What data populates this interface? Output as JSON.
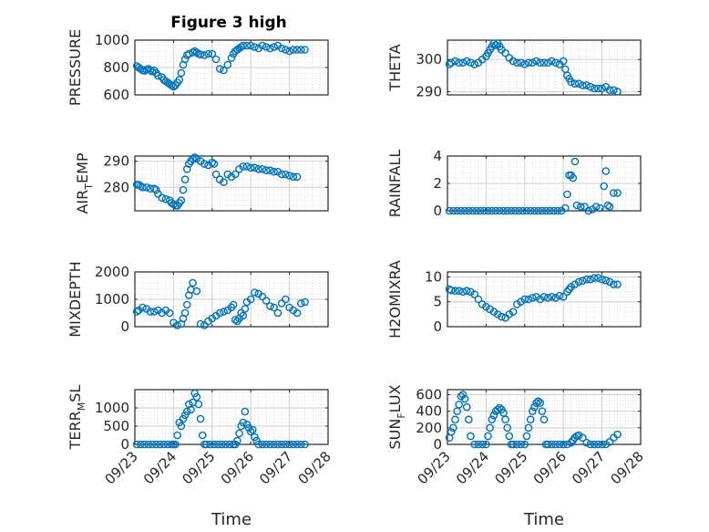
{
  "figure_title": "Figure 3 high",
  "chart_data": [
    {
      "type": "scatter",
      "ylabel_main": "PRESSURE",
      "ylabel_sub": "",
      "ylabel_tail": "",
      "ylim": [
        600,
        1000
      ],
      "yticks": [
        "600",
        "800",
        "1000"
      ],
      "xlim": [
        0,
        5
      ],
      "xticklabels": [
        "09/23",
        "09/24",
        "09/25",
        "09/26",
        "09/27",
        "09/28"
      ],
      "xlabel": "",
      "grid": true,
      "x": [
        0.05,
        0.1,
        0.15,
        0.2,
        0.25,
        0.3,
        0.35,
        0.4,
        0.45,
        0.5,
        0.55,
        0.6,
        0.7,
        0.75,
        0.8,
        0.85,
        0.9,
        0.95,
        1.0,
        1.05,
        1.1,
        1.15,
        1.2,
        1.25,
        1.3,
        1.35,
        1.4,
        1.5,
        1.55,
        1.6,
        1.65,
        1.7,
        1.8,
        1.9,
        2.0,
        2.1,
        2.2,
        2.3,
        2.4,
        2.5,
        2.55,
        2.6,
        2.65,
        2.7,
        2.75,
        2.8,
        2.9,
        3.0,
        3.1,
        3.2,
        3.3,
        3.4,
        3.5,
        3.6,
        3.7,
        3.8,
        3.9,
        4.0,
        4.1,
        4.2,
        4.3,
        4.4
      ],
      "y": [
        810,
        800,
        790,
        780,
        775,
        785,
        790,
        780,
        770,
        780,
        760,
        740,
        730,
        710,
        700,
        690,
        680,
        670,
        660,
        670,
        690,
        710,
        760,
        820,
        860,
        890,
        900,
        910,
        920,
        910,
        900,
        895,
        890,
        900,
        900,
        860,
        790,
        780,
        820,
        870,
        900,
        920,
        930,
        940,
        950,
        960,
        960,
        960,
        950,
        940,
        960,
        950,
        940,
        950,
        960,
        940,
        930,
        920,
        930,
        930,
        930,
        930
      ]
    },
    {
      "type": "scatter",
      "ylabel_main": "THETA",
      "ylabel_sub": "",
      "ylabel_tail": "",
      "ylim": [
        289,
        306
      ],
      "yticks": [
        "290",
        "300"
      ],
      "xlim": [
        0,
        5
      ],
      "xticklabels": [
        "09/23",
        "09/24",
        "09/25",
        "09/26",
        "09/27",
        "09/28"
      ],
      "xlabel": "",
      "grid": true,
      "x": [
        0.05,
        0.1,
        0.2,
        0.3,
        0.4,
        0.5,
        0.6,
        0.7,
        0.8,
        0.9,
        1.0,
        1.05,
        1.1,
        1.15,
        1.2,
        1.25,
        1.3,
        1.35,
        1.4,
        1.5,
        1.6,
        1.7,
        1.8,
        1.9,
        2.0,
        2.1,
        2.2,
        2.3,
        2.4,
        2.5,
        2.6,
        2.7,
        2.8,
        2.9,
        3.0,
        3.05,
        3.1,
        3.15,
        3.2,
        3.3,
        3.4,
        3.5,
        3.6,
        3.7,
        3.8,
        3.9,
        4.0,
        4.1,
        4.2,
        4.3,
        4.4
      ],
      "y": [
        298.5,
        299,
        299.5,
        299,
        299,
        299.5,
        299,
        298.5,
        299,
        300,
        301,
        302,
        303,
        304,
        305,
        304.5,
        305,
        304,
        303,
        302,
        300.5,
        299.5,
        299,
        299,
        298.5,
        299,
        299,
        299.5,
        299,
        299,
        299,
        299.5,
        299,
        298.5,
        299.5,
        297,
        295,
        294,
        293,
        292.5,
        292.5,
        292,
        292,
        291.5,
        291,
        291,
        291,
        291.5,
        290.5,
        290.5,
        290
      ]
    },
    {
      "type": "scatter",
      "ylabel_main": "AIR",
      "ylabel_sub": "T",
      "ylabel_tail": "EMP",
      "ylim": [
        271,
        292
      ],
      "yticks": [
        "280",
        "290"
      ],
      "xlim": [
        0,
        5
      ],
      "xticklabels": [
        "09/23",
        "09/24",
        "09/25",
        "09/26",
        "09/27",
        "09/28"
      ],
      "xlabel": "",
      "grid": true,
      "x": [
        0.05,
        0.1,
        0.15,
        0.2,
        0.3,
        0.4,
        0.5,
        0.55,
        0.6,
        0.7,
        0.8,
        0.9,
        0.95,
        1.0,
        1.05,
        1.1,
        1.15,
        1.2,
        1.25,
        1.3,
        1.35,
        1.4,
        1.45,
        1.5,
        1.55,
        1.6,
        1.7,
        1.8,
        1.9,
        2.0,
        2.05,
        2.1,
        2.2,
        2.3,
        2.4,
        2.5,
        2.6,
        2.7,
        2.8,
        2.9,
        3.0,
        3.1,
        3.2,
        3.3,
        3.4,
        3.5,
        3.6,
        3.7,
        3.8,
        3.9,
        4.0,
        4.1,
        4.2
      ],
      "y": [
        281,
        281,
        280.5,
        280,
        280,
        279.5,
        279.5,
        279,
        277.5,
        276,
        275.5,
        275,
        274,
        273.5,
        273,
        273,
        274,
        275,
        279,
        283,
        287,
        289,
        290,
        291,
        291.5,
        291,
        290,
        289,
        288.5,
        289.5,
        289,
        285,
        283,
        282,
        285,
        284,
        285,
        287,
        288,
        288,
        287.5,
        287.5,
        287,
        287,
        286.5,
        286.5,
        286,
        286,
        285,
        285,
        284.5,
        284,
        284
      ]
    },
    {
      "type": "scatter",
      "ylabel_main": "RAINFALL",
      "ylabel_sub": "",
      "ylabel_tail": "",
      "ylim": [
        0,
        4
      ],
      "yticks": [
        "0",
        "2",
        "4"
      ],
      "xlim": [
        0,
        5
      ],
      "xticklabels": [
        "09/23",
        "09/24",
        "09/25",
        "09/26",
        "09/27",
        "09/28"
      ],
      "xlabel": "",
      "grid": true,
      "x": [
        0.05,
        0.15,
        0.25,
        0.35,
        0.45,
        0.55,
        0.65,
        0.75,
        0.85,
        0.95,
        1.05,
        1.15,
        1.25,
        1.35,
        1.45,
        1.55,
        1.65,
        1.75,
        1.85,
        1.95,
        2.05,
        2.15,
        2.25,
        2.35,
        2.45,
        2.55,
        2.65,
        2.75,
        2.85,
        2.95,
        3.05,
        3.1,
        3.15,
        3.2,
        3.25,
        3.3,
        3.35,
        3.45,
        3.55,
        3.65,
        3.75,
        3.85,
        3.95,
        4.05,
        4.1,
        4.15,
        4.2,
        4.3,
        4.4
      ],
      "y": [
        0,
        0,
        0,
        0,
        0,
        0,
        0,
        0,
        0,
        0,
        0,
        0,
        0,
        0,
        0,
        0,
        0,
        0,
        0,
        0,
        0,
        0,
        0,
        0,
        0,
        0,
        0,
        0,
        0,
        0,
        0.2,
        1.2,
        2.6,
        2.6,
        2.4,
        3.6,
        0.4,
        0.3,
        0.3,
        0,
        0.1,
        0.3,
        0.2,
        1.8,
        2.9,
        0.4,
        0.3,
        1.3,
        1.3
      ]
    },
    {
      "type": "scatter",
      "ylabel_main": "MIXDEPTH",
      "ylabel_sub": "",
      "ylabel_tail": "",
      "ylim": [
        0,
        2000
      ],
      "yticks": [
        "0",
        "1000",
        "2000"
      ],
      "xlim": [
        0,
        5
      ],
      "xticklabels": [
        "09/23",
        "09/24",
        "09/25",
        "09/26",
        "09/27",
        "09/28"
      ],
      "xlabel": "",
      "grid": true,
      "x": [
        0.05,
        0.1,
        0.2,
        0.3,
        0.4,
        0.5,
        0.6,
        0.7,
        0.8,
        0.9,
        1.0,
        1.1,
        1.2,
        1.25,
        1.3,
        1.35,
        1.4,
        1.45,
        1.5,
        1.6,
        1.7,
        1.8,
        1.9,
        2.0,
        2.1,
        2.2,
        2.3,
        2.4,
        2.5,
        2.55,
        2.6,
        2.65,
        2.7,
        2.75,
        2.8,
        2.85,
        2.9,
        3.0,
        3.1,
        3.2,
        3.3,
        3.4,
        3.5,
        3.6,
        3.7,
        3.8,
        3.9,
        4.0,
        4.1,
        4.2,
        4.3,
        4.4
      ],
      "y": [
        550,
        600,
        700,
        650,
        550,
        550,
        600,
        500,
        600,
        500,
        150,
        50,
        100,
        300,
        500,
        800,
        1150,
        1350,
        1600,
        1300,
        100,
        50,
        200,
        300,
        400,
        500,
        550,
        600,
        700,
        800,
        250,
        200,
        300,
        500,
        400,
        650,
        900,
        1000,
        1250,
        1200,
        1100,
        950,
        750,
        700,
        500,
        850,
        1000,
        700,
        600,
        500,
        850,
        900
      ]
    },
    {
      "type": "scatter",
      "ylabel_main": "H2OMIXRA",
      "ylabel_sub": "",
      "ylabel_tail": "",
      "ylim": [
        0,
        11
      ],
      "yticks": [
        "0",
        "5",
        "10"
      ],
      "xlim": [
        0,
        5
      ],
      "xticklabels": [
        "09/23",
        "09/24",
        "09/25",
        "09/26",
        "09/27",
        "09/28"
      ],
      "xlabel": "",
      "grid": true,
      "x": [
        0.05,
        0.1,
        0.2,
        0.3,
        0.4,
        0.5,
        0.6,
        0.7,
        0.8,
        0.9,
        1.0,
        1.1,
        1.2,
        1.3,
        1.4,
        1.5,
        1.6,
        1.7,
        1.8,
        1.9,
        2.0,
        2.1,
        2.2,
        2.3,
        2.4,
        2.5,
        2.6,
        2.7,
        2.8,
        2.9,
        3.0,
        3.1,
        3.15,
        3.2,
        3.3,
        3.4,
        3.5,
        3.6,
        3.7,
        3.8,
        3.9,
        4.0,
        4.1,
        4.2,
        4.3,
        4.4
      ],
      "y": [
        7.5,
        7.3,
        7.2,
        7.2,
        7.0,
        7.2,
        7.0,
        6.5,
        5.5,
        4.5,
        4.0,
        3.5,
        3.0,
        2.5,
        2.0,
        1.8,
        2.5,
        3.0,
        4.5,
        5.0,
        5.5,
        5.5,
        5.8,
        6.0,
        5.5,
        6.0,
        5.8,
        6.0,
        5.8,
        6.2,
        6.0,
        7.0,
        7.5,
        8.0,
        8.5,
        9.0,
        9.2,
        9.5,
        9.5,
        9.8,
        9.8,
        9.5,
        9.3,
        9.0,
        8.5,
        8.5
      ]
    },
    {
      "type": "scatter",
      "ylabel_main": "TERR",
      "ylabel_sub": "M",
      "ylabel_tail": "SL",
      "ylim": [
        0,
        1500
      ],
      "yticks": [
        "0",
        "500",
        "1000"
      ],
      "xlim": [
        0,
        5
      ],
      "xticklabels": [
        "09/23",
        "09/24",
        "09/25",
        "09/26",
        "09/27",
        "09/28"
      ],
      "xlabel": "Time",
      "grid": true,
      "x": [
        0.05,
        0.15,
        0.25,
        0.35,
        0.45,
        0.55,
        0.65,
        0.75,
        0.85,
        0.95,
        1.0,
        1.05,
        1.1,
        1.15,
        1.2,
        1.25,
        1.3,
        1.35,
        1.4,
        1.45,
        1.5,
        1.55,
        1.6,
        1.65,
        1.7,
        1.75,
        1.8,
        1.85,
        1.95,
        2.05,
        2.15,
        2.25,
        2.35,
        2.45,
        2.55,
        2.6,
        2.65,
        2.7,
        2.75,
        2.8,
        2.85,
        2.9,
        2.95,
        3.0,
        3.05,
        3.1,
        3.15,
        3.2,
        3.3,
        3.4,
        3.5,
        3.6,
        3.7,
        3.8,
        3.9,
        4.0,
        4.1,
        4.2,
        4.3,
        4.4
      ],
      "y": [
        0,
        0,
        0,
        0,
        0,
        0,
        0,
        0,
        0,
        0,
        0,
        0,
        250,
        600,
        500,
        700,
        800,
        900,
        1100,
        950,
        1150,
        1400,
        1300,
        1100,
        700,
        250,
        0,
        0,
        0,
        0,
        0,
        0,
        0,
        0,
        0,
        0,
        100,
        300,
        500,
        600,
        900,
        550,
        450,
        350,
        400,
        200,
        100,
        0,
        0,
        0,
        0,
        0,
        0,
        0,
        0,
        0,
        0,
        0,
        0,
        0
      ]
    },
    {
      "type": "scatter",
      "ylabel_main": "SUN",
      "ylabel_sub": "F",
      "ylabel_tail": "LUX",
      "ylim": [
        0,
        660
      ],
      "yticks": [
        "0",
        "200",
        "400",
        "600"
      ],
      "xlim": [
        0,
        5
      ],
      "xticklabels": [
        "09/23",
        "09/24",
        "09/25",
        "09/26",
        "09/27",
        "09/28"
      ],
      "xlabel": "Time",
      "grid": true,
      "x": [
        0.05,
        0.1,
        0.15,
        0.2,
        0.25,
        0.3,
        0.35,
        0.4,
        0.45,
        0.5,
        0.55,
        0.6,
        0.7,
        0.8,
        0.9,
        1.0,
        1.05,
        1.1,
        1.15,
        1.2,
        1.25,
        1.3,
        1.35,
        1.4,
        1.45,
        1.5,
        1.55,
        1.6,
        1.65,
        1.7,
        1.8,
        1.9,
        2.0,
        2.05,
        2.1,
        2.15,
        2.2,
        2.25,
        2.3,
        2.35,
        2.4,
        2.45,
        2.5,
        2.55,
        2.6,
        2.7,
        2.8,
        2.9,
        3.0,
        3.1,
        3.2,
        3.25,
        3.3,
        3.35,
        3.4,
        3.5,
        3.6,
        3.7,
        3.8,
        3.9,
        4.0,
        4.1,
        4.2,
        4.3,
        4.4
      ],
      "y": [
        80,
        150,
        200,
        300,
        400,
        480,
        580,
        600,
        550,
        450,
        300,
        100,
        0,
        0,
        0,
        0,
        100,
        200,
        300,
        350,
        400,
        420,
        440,
        420,
        380,
        300,
        200,
        100,
        0,
        0,
        0,
        0,
        0,
        100,
        200,
        300,
        400,
        450,
        500,
        520,
        500,
        400,
        300,
        0,
        0,
        0,
        0,
        0,
        0,
        0,
        20,
        50,
        80,
        100,
        110,
        80,
        20,
        0,
        0,
        0,
        0,
        0,
        30,
        80,
        120
      ]
    }
  ]
}
